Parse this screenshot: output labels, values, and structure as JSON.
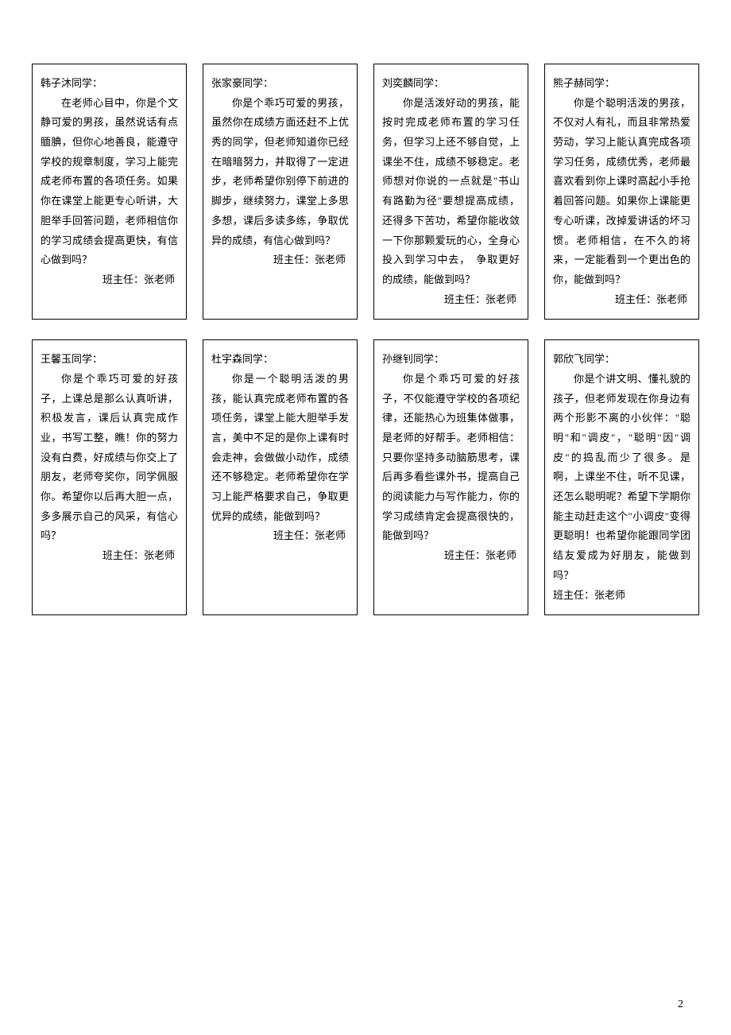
{
  "pageNumber": "2",
  "cards": [
    {
      "greeting": "韩子沐同学：",
      "body": "在老师心目中，你是个文静可爱的男孩，虽然说话有点腼腆，但你心地善良，能遵守学校的规章制度，学习上能完成老师布置的各项任务。如果你在课堂上能更专心听讲，大胆举手回答问题，老师相信你的学习成绩会提高更快，有信心做到吗？",
      "signature": "班主任：张老师"
    },
    {
      "greeting": "张家豪同学：",
      "body": "你是个乖巧可爱的男孩，虽然你在成绩方面还赶不上优秀的同学，但老师知道你已经在暗暗努力，并取得了一定进步，老师希望你别停下前进的脚步，继续努力，课堂上多思多想，课后多读多练，争取优异的成绩，有信心做到吗？",
      "signature": "班主任：张老师"
    },
    {
      "greeting": "刘奕麟同学：",
      "body": "你是活泼好动的男孩，能按时完成老师布置的学习任务，但学习上还不够自觉，上课坐不住，成绩不够稳定。老师想对你说的一点就是\"书山有路勤为径\"要想提高成绩，还得多下苦功，希望你能收敛一下你那颗爱玩的心，全身心投入到学习中去，　争取更好的成绩，能做到吗？",
      "signature": "班主任：张老师"
    },
    {
      "greeting": "熊子赫同学：",
      "body": "你是个聪明活泼的男孩，不仅对人有礼，而且非常热爱劳动，学习上能认真完成各项学习任务，成绩优秀，老师最喜欢看到你上课时高起小手抢着回答问题。如果你上课能更专心听课，改掉爱讲话的坏习惯。老师相信，在不久的将来，一定能看到一个更出色的你，能做到吗？",
      "signature": "班主任：张老师"
    },
    {
      "greeting": "王馨玉同学：",
      "body": "你是个乖巧可爱的好孩子，上课总是那么认真听讲，积极发言，课后认真完成作业，书写工整，瞧！你的努力没有白费，好成绩与你交上了朋友，老师夸奖你，同学佩服你。希望你以后再大胆一点，多多展示自己的风采，有信心吗？",
      "signature": "班主任：张老师"
    },
    {
      "greeting": "杜宇森同学：",
      "body": "你是一个聪明活泼的男孩，能认真完成老师布置的各项任务，课堂上能大胆举手发言，美中不足的是你上课有时会走神，会做做小动作，成绩还不够稳定。老师希望你在学习上能严格要求自己，争取更优异的成绩，能做到吗？",
      "signature": "班主任：张老师"
    },
    {
      "greeting": "孙继钊同学：",
      "body": "你是个乖巧可爱的好孩子，不仅能遵守学校的各项纪律，还能热心为班集体做事，是老师的好帮手。老师相信：只要你坚持多动脑筋思考，课后再多看些课外书，提高自己的阅读能力与写作能力，你的学习成绩肯定会提高很快的，能做到吗？",
      "signature": "班主任：张老师"
    },
    {
      "greeting": "郭欣飞同学：",
      "body": "你是个讲文明、懂礼貌的孩子，但老师发现在你身边有两个形影不离的小伙伴：\"聪明\"和\"调皮\"，\"聪明\"因\"调皮\"的捣乱而少了很多。是啊，上课坐不住，听不见课，还怎么聪明呢？希望下学期你能主动赶走这个\"小调皮\"变得更聪明！也希望你能跟同学团结友爱成为好朋友，能做到吗？",
      "signature": "班主任：张老师",
      "signatureLeft": true
    }
  ]
}
